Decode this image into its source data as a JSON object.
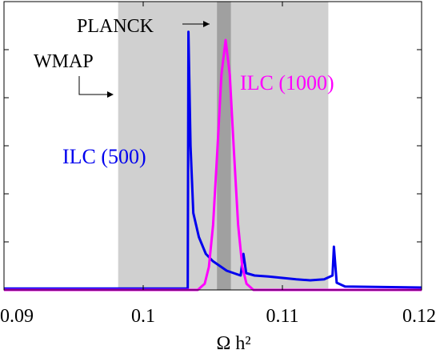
{
  "chart_data": {
    "type": "line",
    "xlabel": "Ω h²",
    "xlim": [
      0.09,
      0.12
    ],
    "xticks": [
      0.09,
      0.1,
      0.11,
      0.12
    ],
    "ylim": [
      0,
      6
    ],
    "yticks": [
      1,
      2,
      3,
      4,
      5
    ],
    "bands": [
      {
        "name": "WMAP",
        "range": [
          0.0982,
          0.1133
        ],
        "color": "#d0d0d0"
      },
      {
        "name": "PLANCK",
        "range": [
          0.1053,
          0.1063
        ],
        "color": "#a0a0a0"
      }
    ],
    "series": [
      {
        "name": "ILC (500)",
        "color": "#0000ee",
        "x": [
          0.09,
          0.103,
          0.1032,
          0.10325,
          0.1034,
          0.1036,
          0.104,
          0.1045,
          0.105,
          0.1055,
          0.106,
          0.1065,
          0.107,
          0.1072,
          0.1074,
          0.108,
          0.109,
          0.11,
          0.111,
          0.112,
          0.113,
          0.1136,
          0.1137,
          0.1139,
          0.1145,
          0.12
        ],
        "values": [
          0.03,
          0.03,
          0.03,
          5.37,
          3.0,
          1.6,
          1.1,
          0.75,
          0.6,
          0.5,
          0.4,
          0.35,
          0.3,
          0.75,
          0.35,
          0.3,
          0.28,
          0.25,
          0.22,
          0.2,
          0.22,
          0.3,
          0.9,
          0.15,
          0.07,
          0.05
        ]
      },
      {
        "name": "ILC (1000)",
        "color": "#ff00ff",
        "x": [
          0.09,
          0.10392,
          0.10442,
          0.10472,
          0.10502,
          0.10532,
          0.10562,
          0.10592,
          0.10622,
          0.10652,
          0.10682,
          0.10712,
          0.10742,
          0.10792,
          0.12
        ],
        "values": [
          0,
          0,
          0.13,
          0.48,
          1.35,
          2.87,
          4.48,
          5.2,
          4.48,
          2.87,
          1.35,
          0.48,
          0.13,
          0,
          0
        ]
      }
    ]
  }
}
